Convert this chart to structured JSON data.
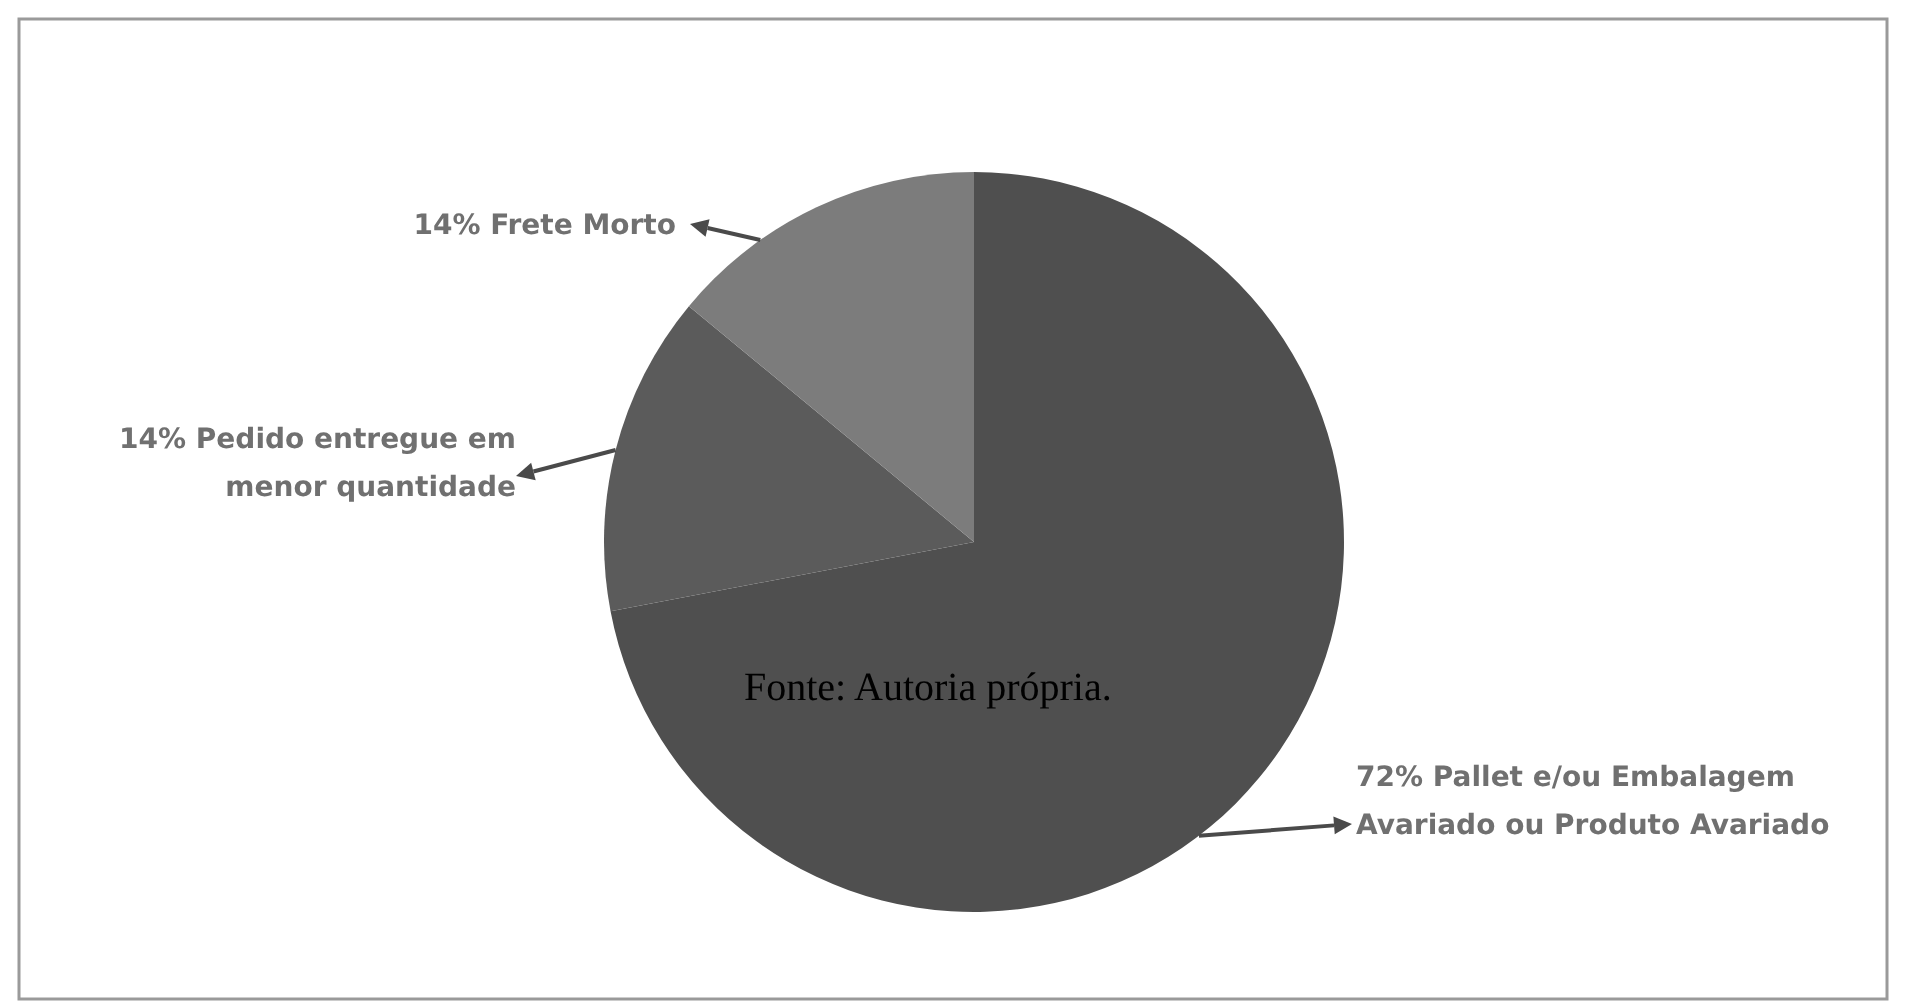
{
  "chart_data": {
    "type": "pie",
    "categories": [
      "Pallet e/ou Embalagem Avariado ou Produto Avariado",
      "Pedido entregue em menor quantidade",
      "Frete Morto"
    ],
    "values": [
      72,
      14,
      14
    ],
    "colors": [
      "#4f4f4f",
      "#5b5b5b",
      "#7c7c7c"
    ],
    "value_labels": [
      "72%",
      "14%",
      "14%"
    ],
    "annotations": [
      "Fonte: Autoria própria."
    ]
  }
}
